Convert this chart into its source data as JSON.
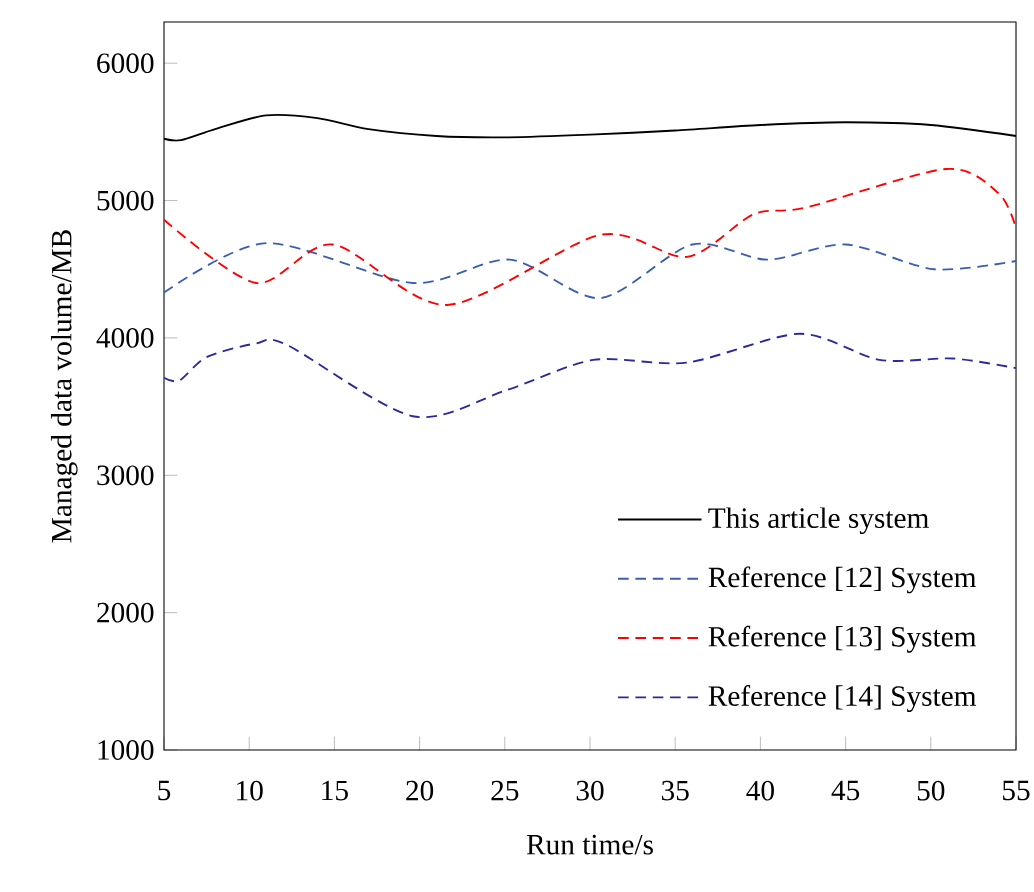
{
  "chart_data": {
    "type": "line",
    "xlabel": "Run time/s",
    "ylabel": "Managed data volume/MB",
    "xlim": [
      5,
      55
    ],
    "ylim": [
      1000,
      6300
    ],
    "xticks": [
      5,
      10,
      15,
      20,
      25,
      30,
      35,
      40,
      45,
      50,
      55
    ],
    "yticks": [
      1000,
      2000,
      3000,
      4000,
      5000,
      6000
    ],
    "grid": false,
    "legend": "bottom right",
    "marker": "none",
    "series": [
      {
        "name": "This article system",
        "color": "#000000",
        "line_style": "solid",
        "x": [
          5,
          6,
          8,
          11,
          14,
          17,
          21,
          25,
          30,
          35,
          40,
          45,
          50,
          55
        ],
        "values": [
          5450,
          5440,
          5520,
          5620,
          5600,
          5520,
          5470,
          5460,
          5480,
          5510,
          5550,
          5570,
          5550,
          5470
        ]
      },
      {
        "name": "Reference [12] System",
        "color": "#3a5fb0",
        "line_style": "dashed",
        "x": [
          5,
          11,
          19.6,
          25.3,
          30.6,
          36,
          40.4,
          45,
          50.2,
          55
        ],
        "values": [
          4330,
          4690,
          4400,
          4570,
          4290,
          4680,
          4570,
          4680,
          4500,
          4560
        ]
      },
      {
        "name": "Reference [13] System",
        "color": "#ff0000",
        "line_style": "dashed",
        "x": [
          5,
          10.4,
          14.9,
          21.6,
          30.6,
          35.7,
          39.6,
          42.7,
          50.9,
          54,
          55
        ],
        "values": [
          4860,
          4400,
          4680,
          4240,
          4750,
          4590,
          4900,
          4950,
          5230,
          5050,
          4800
        ]
      },
      {
        "name": "Reference [14] System",
        "color": "#2a2a9a",
        "line_style": "dashed",
        "x": [
          5,
          5.9,
          7.5,
          10.4,
          12.2,
          19.6,
          25.1,
          30.2,
          35.7,
          42.3,
          47,
          51.3,
          55
        ],
        "values": [
          3710,
          3690,
          3860,
          3960,
          3950,
          3430,
          3620,
          3840,
          3820,
          4030,
          3840,
          3850,
          3780
        ]
      }
    ]
  }
}
